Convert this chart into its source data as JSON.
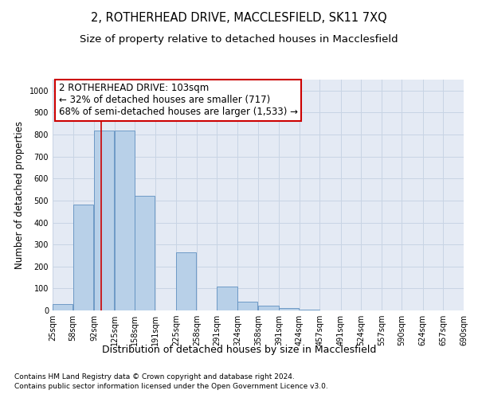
{
  "title": "2, ROTHERHEAD DRIVE, MACCLESFIELD, SK11 7XQ",
  "subtitle": "Size of property relative to detached houses in Macclesfield",
  "xlabel": "Distribution of detached houses by size in Macclesfield",
  "ylabel": "Number of detached properties",
  "footnote1": "Contains HM Land Registry data © Crown copyright and database right 2024.",
  "footnote2": "Contains public sector information licensed under the Open Government Licence v3.0.",
  "annotation_line1": "2 ROTHERHEAD DRIVE: 103sqm",
  "annotation_line2": "← 32% of detached houses are smaller (717)",
  "annotation_line3": "68% of semi-detached houses are larger (1,533) →",
  "bar_color": "#b8d0e8",
  "bar_edge_color": "#6090c0",
  "red_line_x": 103,
  "bin_edges": [
    25,
    58,
    92,
    125,
    158,
    191,
    225,
    258,
    291,
    324,
    358,
    391,
    424,
    457,
    491,
    524,
    557,
    590,
    624,
    657,
    690
  ],
  "bar_heights": [
    30,
    480,
    820,
    820,
    520,
    0,
    265,
    0,
    110,
    40,
    20,
    10,
    5,
    0,
    0,
    0,
    0,
    0,
    0,
    0
  ],
  "ylim": [
    0,
    1050
  ],
  "yticks": [
    0,
    100,
    200,
    300,
    400,
    500,
    600,
    700,
    800,
    900,
    1000
  ],
  "grid_color": "#c8d4e4",
  "background_color": "#e4eaf4",
  "annotation_box_color": "#ffffff",
  "annotation_box_edge": "#cc0000",
  "red_line_color": "#cc0000",
  "title_fontsize": 10.5,
  "subtitle_fontsize": 9.5,
  "tick_fontsize": 7,
  "ylabel_fontsize": 8.5,
  "xlabel_fontsize": 9,
  "annotation_fontsize": 8.5,
  "footnote_fontsize": 6.5
}
